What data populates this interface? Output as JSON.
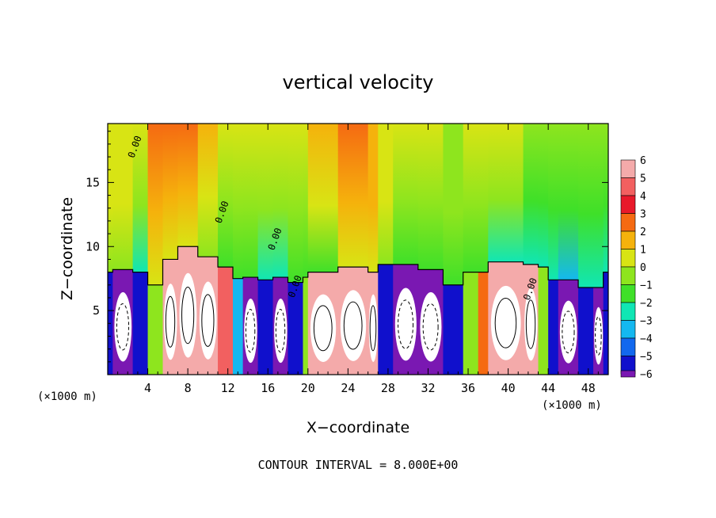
{
  "chart_data": {
    "type": "heatmap",
    "title": "vertical velocity",
    "xlabel": "X−coordinate",
    "ylabel": "Z−coordinate",
    "x_unit_label_left": "(×1000 m)",
    "x_unit_label_right": "(×1000 m)",
    "footer": "CONTOUR INTERVAL = 8.000E+00",
    "xlim": [
      0,
      50
    ],
    "ylim": [
      0,
      19.6
    ],
    "x_ticks": [
      4,
      8,
      12,
      16,
      20,
      24,
      28,
      32,
      36,
      40,
      44,
      48
    ],
    "y_ticks": [
      5,
      10,
      15
    ],
    "contour_labels": [
      {
        "text": "0.00",
        "x": 3.0,
        "y": 17.7
      },
      {
        "text": "0.00",
        "x": 11.7,
        "y": 12.6
      },
      {
        "text": "0.00",
        "x": 17.0,
        "y": 10.5
      },
      {
        "text": "0.00",
        "x": 19.0,
        "y": 6.8
      },
      {
        "text": "0.00",
        "x": 42.5,
        "y": 6.6
      }
    ],
    "colorbar": {
      "levels": [
        6,
        5,
        4,
        3,
        2,
        1,
        0,
        -1,
        -2,
        -3,
        -4,
        -5,
        -6
      ],
      "colors": [
        "#f4aaaa",
        "#f26060",
        "#e8192a",
        "#f56a12",
        "#f5b20c",
        "#d8e414",
        "#8ee51e",
        "#3fe029",
        "#10e6b4",
        "#14b8f0",
        "#1268ee",
        "#1010cc",
        "#7a18b2"
      ]
    },
    "cells": [
      {
        "x": 0.0,
        "vmin": 0,
        "vmax": 1,
        "vlow": -5,
        "low": 8.0,
        "lowExtreme": false
      },
      {
        "x": 0.5,
        "vmin": 0,
        "vmax": 1,
        "vlow": -6,
        "low": 8.2,
        "lowExtreme": true
      },
      {
        "x": 2.5,
        "vmin": -2,
        "vmax": 1,
        "vlow": -5,
        "low": 8.0,
        "lowExtreme": false
      },
      {
        "x": 4.0,
        "vmin": 1,
        "vmax": 3,
        "vlow": 0,
        "low": 7.0,
        "lowExtreme": false
      },
      {
        "x": 5.5,
        "vmin": 1,
        "vmax": 3,
        "vlow": 6,
        "low": 9.0,
        "lowExtreme": true
      },
      {
        "x": 7.0,
        "vmin": 1,
        "vmax": 3,
        "vlow": 6,
        "low": 10.0,
        "lowExtreme": true
      },
      {
        "x": 9.0,
        "vmin": 0,
        "vmax": 2,
        "vlow": 6,
        "low": 9.2,
        "lowExtreme": true
      },
      {
        "x": 11.0,
        "vmin": -1,
        "vmax": 1,
        "vlow": 5,
        "low": 8.4,
        "lowExtreme": false
      },
      {
        "x": 12.5,
        "vmin": -1,
        "vmax": 1,
        "vlow": -3,
        "low": 7.5,
        "lowExtreme": false
      },
      {
        "x": 13.5,
        "vmin": -1,
        "vmax": 1,
        "vlow": -6,
        "low": 7.6,
        "lowExtreme": true
      },
      {
        "x": 15.0,
        "vmin": -2,
        "vmax": 1,
        "vlow": -5,
        "low": 7.4,
        "lowExtreme": false
      },
      {
        "x": 16.5,
        "vmin": -2,
        "vmax": 1,
        "vlow": -6,
        "low": 7.6,
        "lowExtreme": true
      },
      {
        "x": 18.0,
        "vmin": -1,
        "vmax": 1,
        "vlow": -5,
        "low": 7.2,
        "lowExtreme": false
      },
      {
        "x": 19.5,
        "vmin": -1,
        "vmax": 1,
        "vlow": 0,
        "low": 7.6,
        "lowExtreme": false
      },
      {
        "x": 20.0,
        "vmin": -1,
        "vmax": 2,
        "vlow": 6,
        "low": 8.0,
        "lowExtreme": true
      },
      {
        "x": 23.0,
        "vmin": 1,
        "vmax": 3,
        "vlow": 6,
        "low": 8.4,
        "lowExtreme": true
      },
      {
        "x": 26.0,
        "vmin": 1,
        "vmax": 2,
        "vlow": 6,
        "low": 8.0,
        "lowExtreme": true
      },
      {
        "x": 27.0,
        "vmin": 0,
        "vmax": 1,
        "vlow": -5,
        "low": 8.6,
        "lowExtreme": false
      },
      {
        "x": 28.5,
        "vmin": -1,
        "vmax": 1,
        "vlow": -6,
        "low": 8.6,
        "lowExtreme": true
      },
      {
        "x": 31.0,
        "vmin": -1,
        "vmax": 1,
        "vlow": -6,
        "low": 8.2,
        "lowExtreme": true
      },
      {
        "x": 33.5,
        "vmin": -1,
        "vmax": 0,
        "vlow": -5,
        "low": 7.0,
        "lowExtreme": false
      },
      {
        "x": 35.5,
        "vmin": -1,
        "vmax": 1,
        "vlow": 0,
        "low": 8.0,
        "lowExtreme": false
      },
      {
        "x": 37.0,
        "vmin": -1,
        "vmax": 1,
        "vlow": 3,
        "low": 8.0,
        "lowExtreme": false
      },
      {
        "x": 38.0,
        "vmin": -2,
        "vmax": 1,
        "vlow": 6,
        "low": 8.8,
        "lowExtreme": true
      },
      {
        "x": 41.5,
        "vmin": -2,
        "vmax": 0,
        "vlow": 6,
        "low": 8.6,
        "lowExtreme": true
      },
      {
        "x": 43.0,
        "vmin": -2,
        "vmax": 0,
        "vlow": 0,
        "low": 8.4,
        "lowExtreme": false
      },
      {
        "x": 44.0,
        "vmin": -2,
        "vmax": 0,
        "vlow": -5,
        "low": 7.4,
        "lowExtreme": false
      },
      {
        "x": 45.0,
        "vmin": -3,
        "vmax": 0,
        "vlow": -6,
        "low": 7.4,
        "lowExtreme": true
      },
      {
        "x": 47.0,
        "vmin": -2,
        "vmax": 0,
        "vlow": -5,
        "low": 6.8,
        "lowExtreme": false
      },
      {
        "x": 48.5,
        "vmin": -2,
        "vmax": 0,
        "vlow": -6,
        "low": 6.8,
        "lowExtreme": true
      },
      {
        "x": 49.5,
        "vmin": -2,
        "vmax": 0,
        "vlow": -5,
        "low": 8.0,
        "lowExtreme": false
      }
    ]
  }
}
